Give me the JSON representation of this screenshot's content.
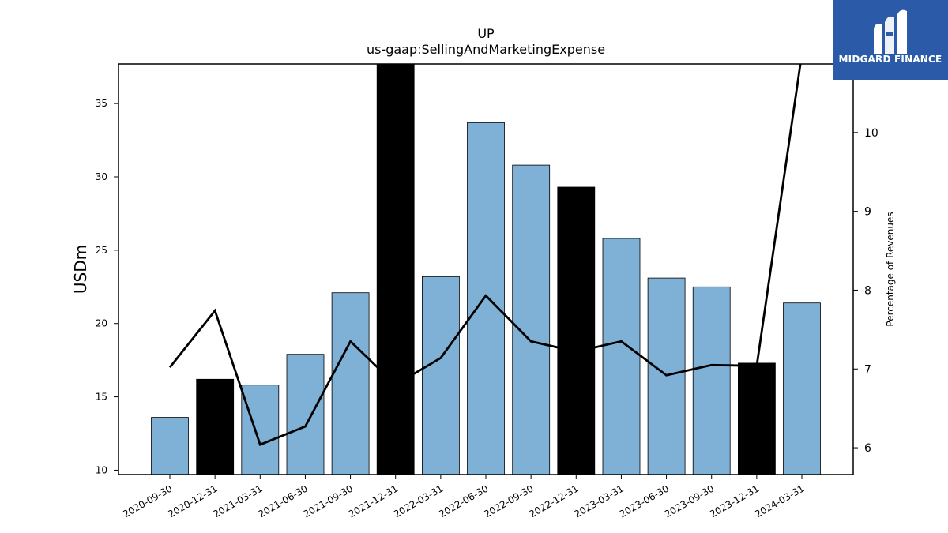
{
  "chart_data": {
    "type": "bar",
    "title": "UP",
    "subtitle": "us-gaap:SellingAndMarketingExpense",
    "ylabel": "USDm",
    "y2label": "Percentage of Revenues",
    "categories": [
      "2020-09-30",
      "2020-12-31",
      "2021-03-31",
      "2021-06-30",
      "2021-09-30",
      "2021-12-31",
      "2022-03-31",
      "2022-06-30",
      "2022-09-30",
      "2022-12-31",
      "2023-03-31",
      "2023-06-30",
      "2023-09-30",
      "2023-12-31",
      "2024-03-31"
    ],
    "series": [
      {
        "kind": "bar",
        "values": [
          13.6,
          16.2,
          15.8,
          17.9,
          22.1,
          37.8,
          23.2,
          33.7,
          30.8,
          29.3,
          25.8,
          23.1,
          22.5,
          17.3,
          21.4
        ],
        "colors": [
          "#7fb0d5",
          "#000000",
          "#7fb0d5",
          "#7fb0d5",
          "#7fb0d5",
          "#000000",
          "#7fb0d5",
          "#7fb0d5",
          "#7fb0d5",
          "#000000",
          "#7fb0d5",
          "#7fb0d5",
          "#7fb0d5",
          "#000000",
          "#7fb0d5"
        ]
      },
      {
        "kind": "line",
        "axis": "right",
        "color": "#000000",
        "values": [
          7.02,
          7.74,
          6.04,
          6.27,
          7.35,
          6.8,
          7.14,
          7.93,
          7.35,
          7.22,
          7.35,
          6.92,
          7.05,
          7.04,
          11.0
        ]
      }
    ],
    "ylim": [
      9.7,
      37.7
    ],
    "yticks": [
      10,
      15,
      20,
      25,
      30,
      35
    ],
    "y2lim": [
      5.66,
      10.87
    ],
    "y2ticks": [
      6,
      7,
      8,
      9,
      10
    ],
    "grid": false
  },
  "logo": {
    "name": "MIDGARD FINANCE",
    "icon": "midgard-logo-icon",
    "background": "#2b5ba8"
  }
}
